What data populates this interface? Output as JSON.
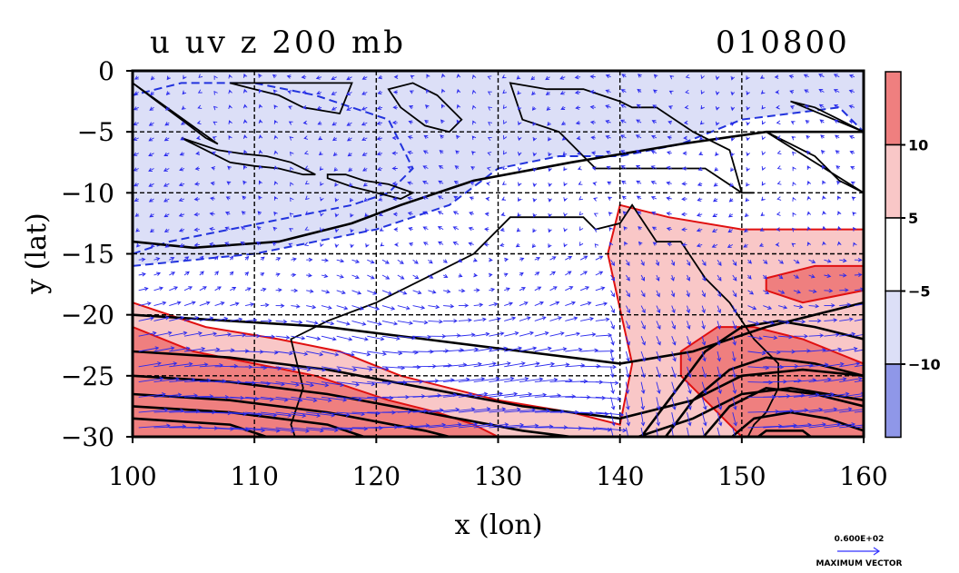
{
  "chart_data": {
    "type": "heatmap",
    "title": "u uv z 200 mb",
    "title_right": "010800",
    "xlabel": "x (lon)",
    "ylabel": "y (lat)",
    "xlim": [
      100,
      160
    ],
    "ylim": [
      -30,
      0
    ],
    "xticks": [
      "100",
      "110",
      "120",
      "130",
      "140",
      "150",
      "160"
    ],
    "yticks": [
      "0",
      "−5",
      "−10",
      "−15",
      "−20",
      "−25",
      "−30"
    ],
    "grid": true,
    "colorbar": {
      "ticks": [
        "10",
        "5",
        "−5",
        "−10"
      ],
      "levels": [
        -10,
        -5,
        5,
        10
      ],
      "colors": [
        "#8f97e8",
        "#dcdff7",
        "#ffffff",
        "#f9c7c7",
        "#ef7f7f"
      ]
    },
    "vector_label": "0.600E+02",
    "vector_caption": "MAXIMUM VECTOR",
    "field_regions": [
      {
        "level": -10,
        "color": "#8f97e8",
        "lon": [
          100,
          103,
          108,
          113,
          118,
          121,
          123,
          121,
          115,
          110,
          104,
          100
        ],
        "lat": [
          -15,
          -14,
          -13,
          -12,
          -11,
          -10,
          -8,
          -4,
          -2,
          -1,
          -1,
          -2
        ]
      },
      {
        "level": -5,
        "color": "#dcdff7",
        "lon": [
          100,
          110,
          120,
          126,
          130,
          135,
          140,
          145,
          150,
          158,
          160,
          160,
          100
        ],
        "lat": [
          -16,
          -15,
          -13,
          -11,
          -8,
          -7,
          -7,
          -6,
          -4,
          -3,
          -5,
          0,
          0
        ]
      },
      {
        "level": 5,
        "color": "#f9c7c7",
        "lon": [
          100,
          106,
          112,
          117,
          122,
          126,
          130,
          136,
          140,
          141,
          139,
          140,
          144,
          150,
          156,
          160,
          160,
          100
        ],
        "lat": [
          -19,
          -21,
          -22,
          -23,
          -25,
          -26,
          -27,
          -28,
          -29,
          -24,
          -15,
          -11,
          -12,
          -13,
          -13,
          -13,
          -30,
          -30
        ]
      },
      {
        "level": 10,
        "color": "#ef7f7f",
        "lon": [
          100,
          105,
          110,
          115,
          118,
          121,
          125,
          128,
          130,
          100
        ],
        "lat": [
          -21,
          -23,
          -24,
          -25,
          -26,
          -27,
          -28,
          -29,
          -30,
          -30
        ]
      },
      {
        "level": 10,
        "color": "#ef7f7f",
        "lon": [
          145,
          148,
          151,
          155,
          160,
          160,
          150,
          147,
          145
        ],
        "lat": [
          -23,
          -21,
          -21,
          -22,
          -24,
          -30,
          -30,
          -27,
          -25
        ]
      },
      {
        "level": 10,
        "color": "#ef7f7f",
        "lon": [
          152,
          156,
          160,
          160,
          155,
          152
        ],
        "lat": [
          -17,
          -16,
          -16,
          -18,
          -19,
          -18
        ]
      }
    ]
  }
}
